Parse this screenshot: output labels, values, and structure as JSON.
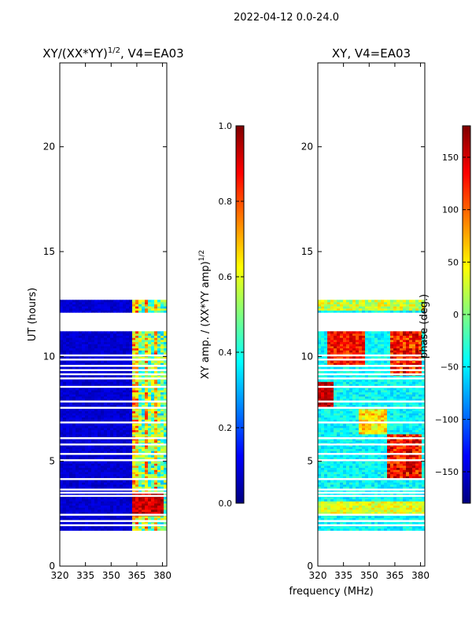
{
  "figure": {
    "suptitle": "2022-04-12 0.0-24.0",
    "shared_xlabel": "frequency (MHz)"
  },
  "chart_data": [
    {
      "type": "heatmap",
      "id": "amp",
      "title_main": "XY/(XX*YY)",
      "title_exp": "1/2",
      "title_tail": ", V4=EA03",
      "ylabel": "UT (hours)",
      "xlim": [
        320,
        382.5
      ],
      "ylim": [
        0,
        24
      ],
      "xticks": [
        320,
        335,
        350,
        365,
        380
      ],
      "yticks": [
        0,
        5,
        10,
        15,
        20
      ],
      "colorbar": {
        "label_main": "XY amp. / (XX*YY amp)",
        "label_exp": "1/2",
        "range": [
          0.0,
          1.0
        ],
        "ticks": [
          "0.0",
          "0.2",
          "0.4",
          "0.6",
          "0.8",
          "1.0"
        ],
        "tick_values": [
          0.0,
          0.2,
          0.4,
          0.6,
          0.8,
          1.0
        ]
      },
      "data_coverage_hours": [
        [
          1.7,
          11.2
        ],
        [
          12.1,
          12.7
        ]
      ],
      "gap_lines_hours": [
        1.95,
        2.15,
        2.45,
        3.35,
        3.5,
        3.65,
        4.15,
        5.05,
        5.35,
        5.8,
        6.1,
        6.85,
        7.55,
        7.85,
        8.55,
        8.95,
        9.15,
        9.35,
        9.55,
        9.85,
        10.05
      ],
      "notes": "Low values (~0.05) below 362 MHz; moderate-high (0.3-0.8) at 362-382 MHz; near 1.0 at 2.5-3.5 h between 362 and 380 MHz"
    },
    {
      "type": "heatmap",
      "id": "phase",
      "title": "XY, V4=EA03",
      "xlim": [
        320,
        382.5
      ],
      "ylim": [
        0,
        24
      ],
      "xticks": [
        320,
        335,
        350,
        365,
        380
      ],
      "yticks": [
        0,
        5,
        10,
        15,
        20
      ],
      "colorbar": {
        "label": "phase (deg.)",
        "range": [
          -180,
          180
        ],
        "ticks": [
          "150",
          "100",
          "50",
          "0",
          "−50",
          "−100",
          "−150"
        ],
        "tick_values": [
          150,
          100,
          50,
          0,
          -50,
          -100,
          -150
        ]
      },
      "data_coverage_hours": [
        [
          1.7,
          11.2
        ],
        [
          12.1,
          12.7
        ]
      ],
      "gap_lines_hours": [
        1.95,
        2.15,
        2.45,
        3.35,
        3.5,
        3.65,
        4.15,
        5.05,
        5.35,
        5.8,
        6.1,
        6.85,
        7.55,
        7.85,
        8.55,
        8.95,
        9.15,
        9.35,
        9.55,
        9.85,
        10.05
      ],
      "notes": "Mostly cyan/blue (-50 to -120 deg); warm patches (+90 to +180 deg) near 325-345 MHz at 7.5-11 h and 360-380 MHz at 4-6 h and 9-11 h"
    }
  ]
}
